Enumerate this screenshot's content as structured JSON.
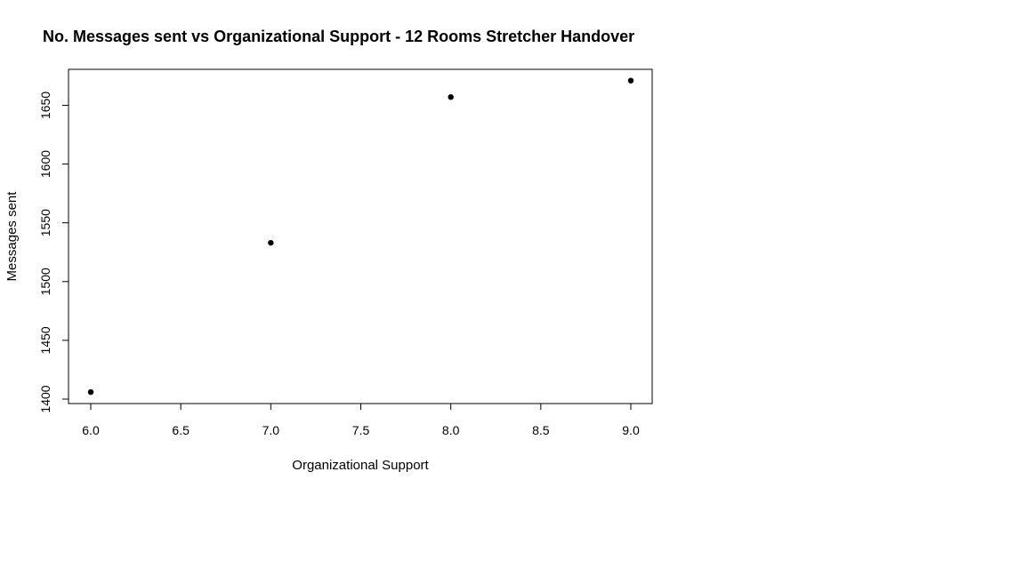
{
  "chart_data": {
    "type": "scatter",
    "title": "No. Messages sent vs Organizational Support - 12 Rooms Stretcher Handover",
    "xlabel": "Organizational Support",
    "ylabel": "Messages sent",
    "xlim": [
      6.0,
      9.0
    ],
    "ylim": [
      1400,
      1670
    ],
    "x_ticks": [
      "6.0",
      "6.5",
      "7.0",
      "7.5",
      "8.0",
      "8.5",
      "9.0"
    ],
    "y_ticks": [
      "1400",
      "1450",
      "1500",
      "1550",
      "1600",
      "1650"
    ],
    "points": [
      {
        "x": 6.0,
        "y": 1406
      },
      {
        "x": 7.0,
        "y": 1533
      },
      {
        "x": 8.0,
        "y": 1657
      },
      {
        "x": 9.0,
        "y": 1671
      }
    ],
    "grid": false,
    "marker_color": "#000000"
  }
}
